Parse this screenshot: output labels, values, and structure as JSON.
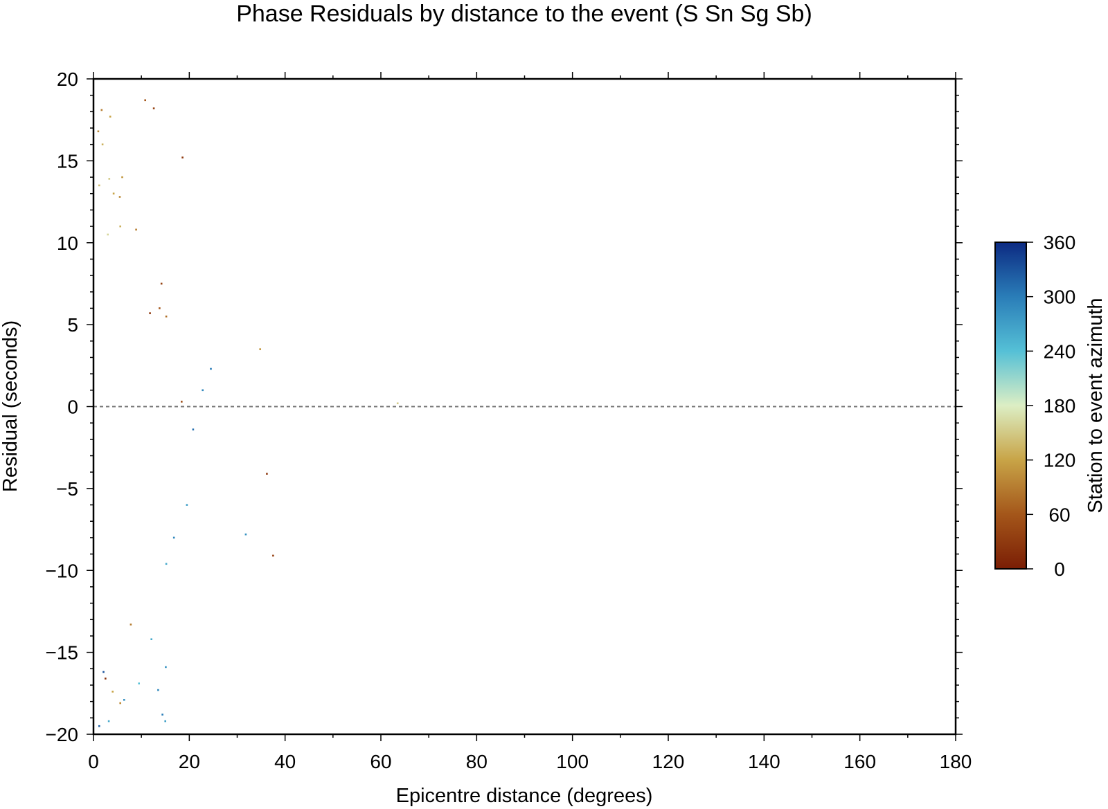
{
  "chart_data": {
    "type": "scatter",
    "title": "Phase Residuals by distance to the event (S Sn Sg Sb)",
    "xlabel": "Epicentre distance (degrees)",
    "ylabel": "Residual (seconds)",
    "xlim": [
      0,
      180
    ],
    "ylim": [
      -20,
      20
    ],
    "x_ticks": [
      0,
      20,
      40,
      60,
      80,
      100,
      120,
      140,
      160,
      180
    ],
    "y_ticks": [
      -20,
      -15,
      -10,
      -5,
      0,
      5,
      10,
      15,
      20
    ],
    "reference_line": {
      "y": 0,
      "style": "dashed",
      "color": "#777777"
    },
    "colorbar": {
      "label": "Station to event azimuth",
      "range": [
        0,
        360
      ],
      "ticks": [
        0,
        60,
        120,
        180,
        240,
        300,
        360
      ],
      "stops": [
        {
          "value": 0,
          "color": "#7a1e05"
        },
        {
          "value": 60,
          "color": "#a4561a"
        },
        {
          "value": 120,
          "color": "#c8a447"
        },
        {
          "value": 180,
          "color": "#dceec4"
        },
        {
          "value": 240,
          "color": "#55c0d6"
        },
        {
          "value": 300,
          "color": "#2a7db8"
        },
        {
          "value": 360,
          "color": "#0c2a82"
        }
      ]
    },
    "points": [
      [
        10.8,
        18.7,
        60
      ],
      [
        12.6,
        18.2,
        40
      ],
      [
        1.7,
        18.1,
        90
      ],
      [
        3.5,
        17.7,
        120
      ],
      [
        1.0,
        16.8,
        100
      ],
      [
        1.9,
        16.0,
        130
      ],
      [
        18.6,
        15.2,
        30
      ],
      [
        1.2,
        13.5,
        140
      ],
      [
        3.3,
        13.9,
        150
      ],
      [
        6.0,
        14.0,
        110
      ],
      [
        4.2,
        13.0,
        120
      ],
      [
        5.5,
        12.8,
        100
      ],
      [
        8.9,
        10.8,
        90
      ],
      [
        5.6,
        11.0,
        130
      ],
      [
        3.0,
        10.5,
        160
      ],
      [
        14.2,
        7.5,
        40
      ],
      [
        13.8,
        6.0,
        60
      ],
      [
        15.2,
        5.5,
        80
      ],
      [
        11.8,
        5.7,
        30
      ],
      [
        34.8,
        3.5,
        110
      ],
      [
        24.5,
        2.3,
        300
      ],
      [
        22.8,
        1.0,
        290
      ],
      [
        20.8,
        -1.4,
        310
      ],
      [
        18.4,
        0.3,
        50
      ],
      [
        63.5,
        0.2,
        150
      ],
      [
        36.2,
        -4.1,
        30
      ],
      [
        37.5,
        -9.1,
        40
      ],
      [
        31.8,
        -7.8,
        280
      ],
      [
        19.5,
        -6.0,
        270
      ],
      [
        16.8,
        -8.0,
        290
      ],
      [
        15.2,
        -9.6,
        260
      ],
      [
        15.1,
        -15.9,
        280
      ],
      [
        14.4,
        -18.8,
        300
      ],
      [
        13.5,
        -17.3,
        290
      ],
      [
        15.0,
        -19.2,
        270
      ],
      [
        9.5,
        -16.9,
        240
      ],
      [
        6.4,
        -17.9,
        280
      ],
      [
        5.6,
        -18.1,
        100
      ],
      [
        3.2,
        -19.2,
        260
      ],
      [
        1.2,
        -19.5,
        320
      ],
      [
        2.1,
        -16.2,
        330
      ],
      [
        2.5,
        -16.6,
        20
      ],
      [
        4.0,
        -17.4,
        120
      ],
      [
        12.1,
        -14.2,
        260
      ],
      [
        7.8,
        -13.3,
        90
      ]
    ]
  }
}
